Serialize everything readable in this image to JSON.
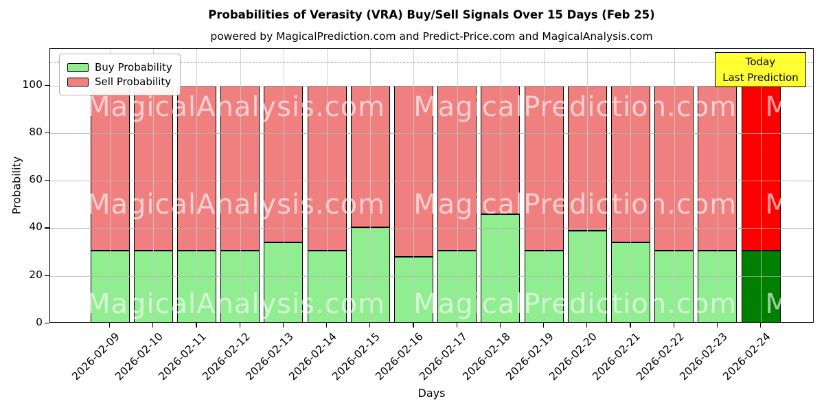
{
  "chart_data": {
    "type": "bar",
    "stacked": true,
    "title": "Probabilities of Verasity (VRA) Buy/Sell Signals Over 15 Days (Feb 25)",
    "subtitle": "powered by MagicalPrediction.com and Predict-Price.com and MagicalAnalysis.com",
    "xlabel": "Days",
    "ylabel": "Probability",
    "ylim": [
      0,
      115
    ],
    "yticks": [
      0,
      20,
      40,
      60,
      80,
      100
    ],
    "grid": true,
    "dashed_line_y": 110,
    "categories": [
      "2026-02-09",
      "2026-02-10",
      "2026-02-11",
      "2026-02-12",
      "2026-02-13",
      "2026-02-14",
      "2026-02-15",
      "2026-02-16",
      "2026-02-17",
      "2026-02-18",
      "2026-02-19",
      "2026-02-20",
      "2026-02-21",
      "2026-02-22",
      "2026-02-23",
      "2026-02-24"
    ],
    "series": [
      {
        "name": "Buy Probability",
        "values": [
          30.5,
          30.5,
          30.5,
          30.5,
          34,
          30.5,
          40.5,
          28,
          30.5,
          46,
          30.5,
          39,
          34,
          30.5,
          30.5,
          30.5
        ]
      },
      {
        "name": "Sell Probability",
        "values": [
          69.5,
          69.5,
          69.5,
          69.5,
          66,
          69.5,
          59.5,
          72,
          69.5,
          54,
          69.5,
          61,
          66,
          69.5,
          69.5,
          69.5
        ]
      }
    ],
    "today_index": 15,
    "colors": {
      "buy": "#90EE90",
      "sell": "#F08080",
      "buy_today": "#008000",
      "sell_today": "#FF0000",
      "bar_edge": "#000000",
      "grid": "#b0b0b0",
      "dashed_line": "#8a8a8a",
      "annotation_bg": "#FFFF00"
    },
    "legend_position": "upper left"
  },
  "legend": {
    "items": [
      {
        "label": "Buy Probability",
        "color": "#90EE90"
      },
      {
        "label": "Sell Probability",
        "color": "#F08080"
      }
    ]
  },
  "annotation_box": {
    "line1": "Today",
    "line2": "Last Prediction"
  },
  "watermarks": {
    "left": "MagicalAnalysis.com",
    "right": "MagicalPrediction.com"
  }
}
